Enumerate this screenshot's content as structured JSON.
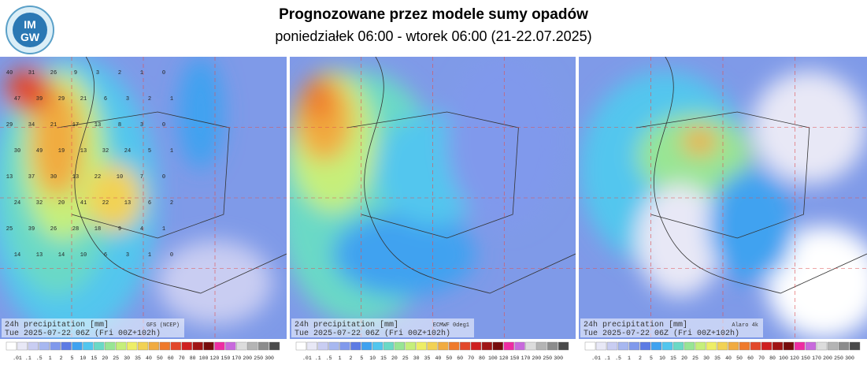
{
  "header": {
    "title": "Prognozowane przez modele sumy opadów",
    "subtitle": "poniedziałek 06:00 - wtorek 06:00 (21-22.07.2025)"
  },
  "logo": {
    "top": "IM",
    "bottom": "GW"
  },
  "panels": [
    {
      "caption": "24h precipitation   [mm]",
      "model": "GFS (NCEP)",
      "valid": "Tue 2025-07-22 06Z (Fri 00Z+102h)",
      "grid_values": [
        [
          40,
          31,
          26,
          9,
          3,
          2,
          1,
          0
        ],
        [
          47,
          39,
          29,
          21,
          6,
          3,
          2,
          1
        ],
        [
          29,
          34,
          21,
          17,
          13,
          8,
          3,
          0
        ],
        [
          30,
          49,
          19,
          13,
          32,
          24,
          5,
          1
        ],
        [
          13,
          37,
          30,
          13,
          22,
          10,
          7,
          0
        ],
        [
          24,
          32,
          20,
          41,
          22,
          13,
          6,
          2
        ],
        [
          25,
          39,
          26,
          28,
          18,
          9,
          4,
          1
        ],
        [
          14,
          13,
          14,
          10,
          6,
          3,
          1,
          0
        ]
      ]
    },
    {
      "caption": "24h precipitation   [mm]",
      "model": "ECMWF 0deg1",
      "valid": "Tue 2025-07-22 06Z (Fri 00Z+102h)"
    },
    {
      "caption": "24h precipitation   [mm]",
      "model": "Alaro 4k",
      "valid": "Tue 2025-07-22 06Z (Fri 00Z+102h)"
    }
  ],
  "colorbar": {
    "labels": [
      ".01",
      ".1",
      ".5",
      "1",
      "2",
      "5",
      "10",
      "15",
      "20",
      "25",
      "30",
      "35",
      "40",
      "50",
      "60",
      "70",
      "80",
      "100",
      "120",
      "150",
      "170",
      "200",
      "250",
      "300"
    ],
    "colors": [
      "#ffffff",
      "#e8e8f6",
      "#c9cdf2",
      "#a7b7f0",
      "#8099ec",
      "#5d7be4",
      "#3fa2f0",
      "#52c6ee",
      "#6ad9c6",
      "#98e594",
      "#c6ef7a",
      "#eeee66",
      "#f2d254",
      "#f1ab40",
      "#ef7a2b",
      "#e2482a",
      "#cf2020",
      "#a01414",
      "#760c0c",
      "#ee2ca2",
      "#c86adc",
      "#dcdcdc",
      "#b4b4b4",
      "#8c8c8c",
      "#4a4a4a"
    ]
  }
}
